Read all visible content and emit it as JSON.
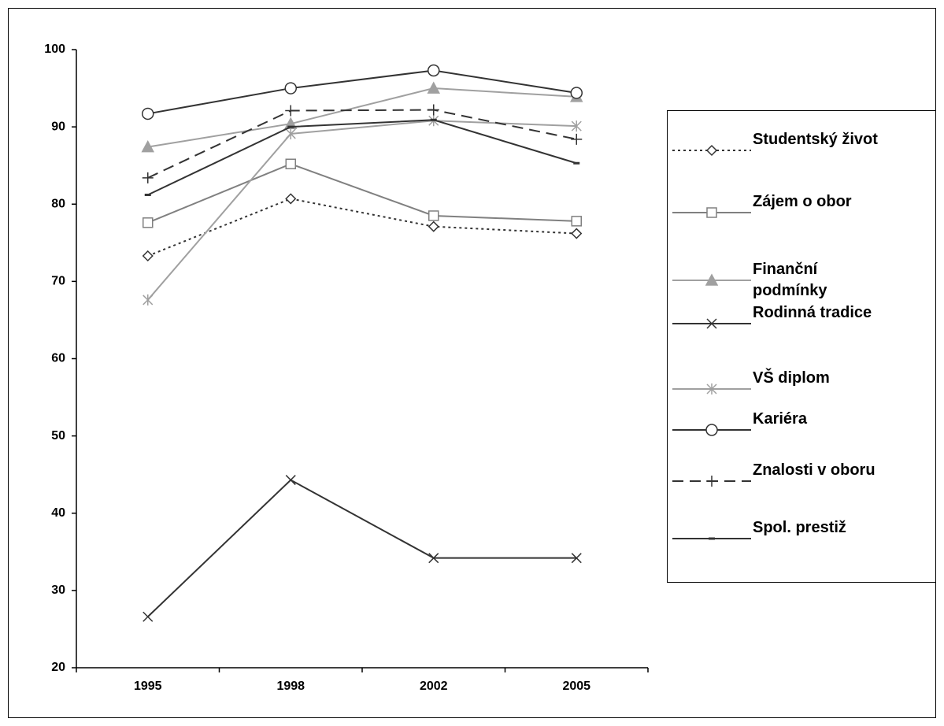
{
  "chart_data": {
    "type": "line",
    "categories": [
      "1995",
      "1998",
      "2002",
      "2005"
    ],
    "ylim": [
      20,
      100
    ],
    "yticks": [
      20,
      30,
      40,
      50,
      60,
      70,
      80,
      90,
      100
    ],
    "series": [
      {
        "name": "Studentský život",
        "color": "#333333",
        "dash": "dotted",
        "marker": "diamond",
        "values": [
          73.3,
          80.7,
          77.1,
          76.2
        ]
      },
      {
        "name": "Zájem o obor",
        "color": "#808080",
        "dash": "solid",
        "marker": "square",
        "values": [
          77.6,
          85.2,
          78.5,
          77.8
        ]
      },
      {
        "name": "Finanční podmínky",
        "color": "#a0a0a0",
        "dash": "solid",
        "marker": "triangle",
        "values": [
          87.4,
          90.4,
          95.0,
          93.9
        ]
      },
      {
        "name": "Rodinná tradice",
        "color": "#333333",
        "dash": "solid",
        "marker": "x",
        "values": [
          26.6,
          44.3,
          34.2,
          34.2
        ]
      },
      {
        "name": "VŠ diplom",
        "color": "#a0a0a0",
        "dash": "solid",
        "marker": "star",
        "values": [
          67.6,
          89.1,
          90.8,
          90.1
        ]
      },
      {
        "name": "Kariéra",
        "color": "#333333",
        "dash": "solid",
        "marker": "circle",
        "values": [
          91.7,
          95.0,
          97.3,
          94.4
        ]
      },
      {
        "name": "Znalosti v oboru",
        "color": "#333333",
        "dash": "dashed",
        "marker": "plus",
        "values": [
          83.4,
          92.1,
          92.2,
          88.4
        ]
      },
      {
        "name": "Spol. prestiž",
        "color": "#333333",
        "dash": "solid",
        "marker": "dash",
        "values": [
          81.2,
          90.0,
          90.9,
          85.3
        ]
      }
    ]
  }
}
